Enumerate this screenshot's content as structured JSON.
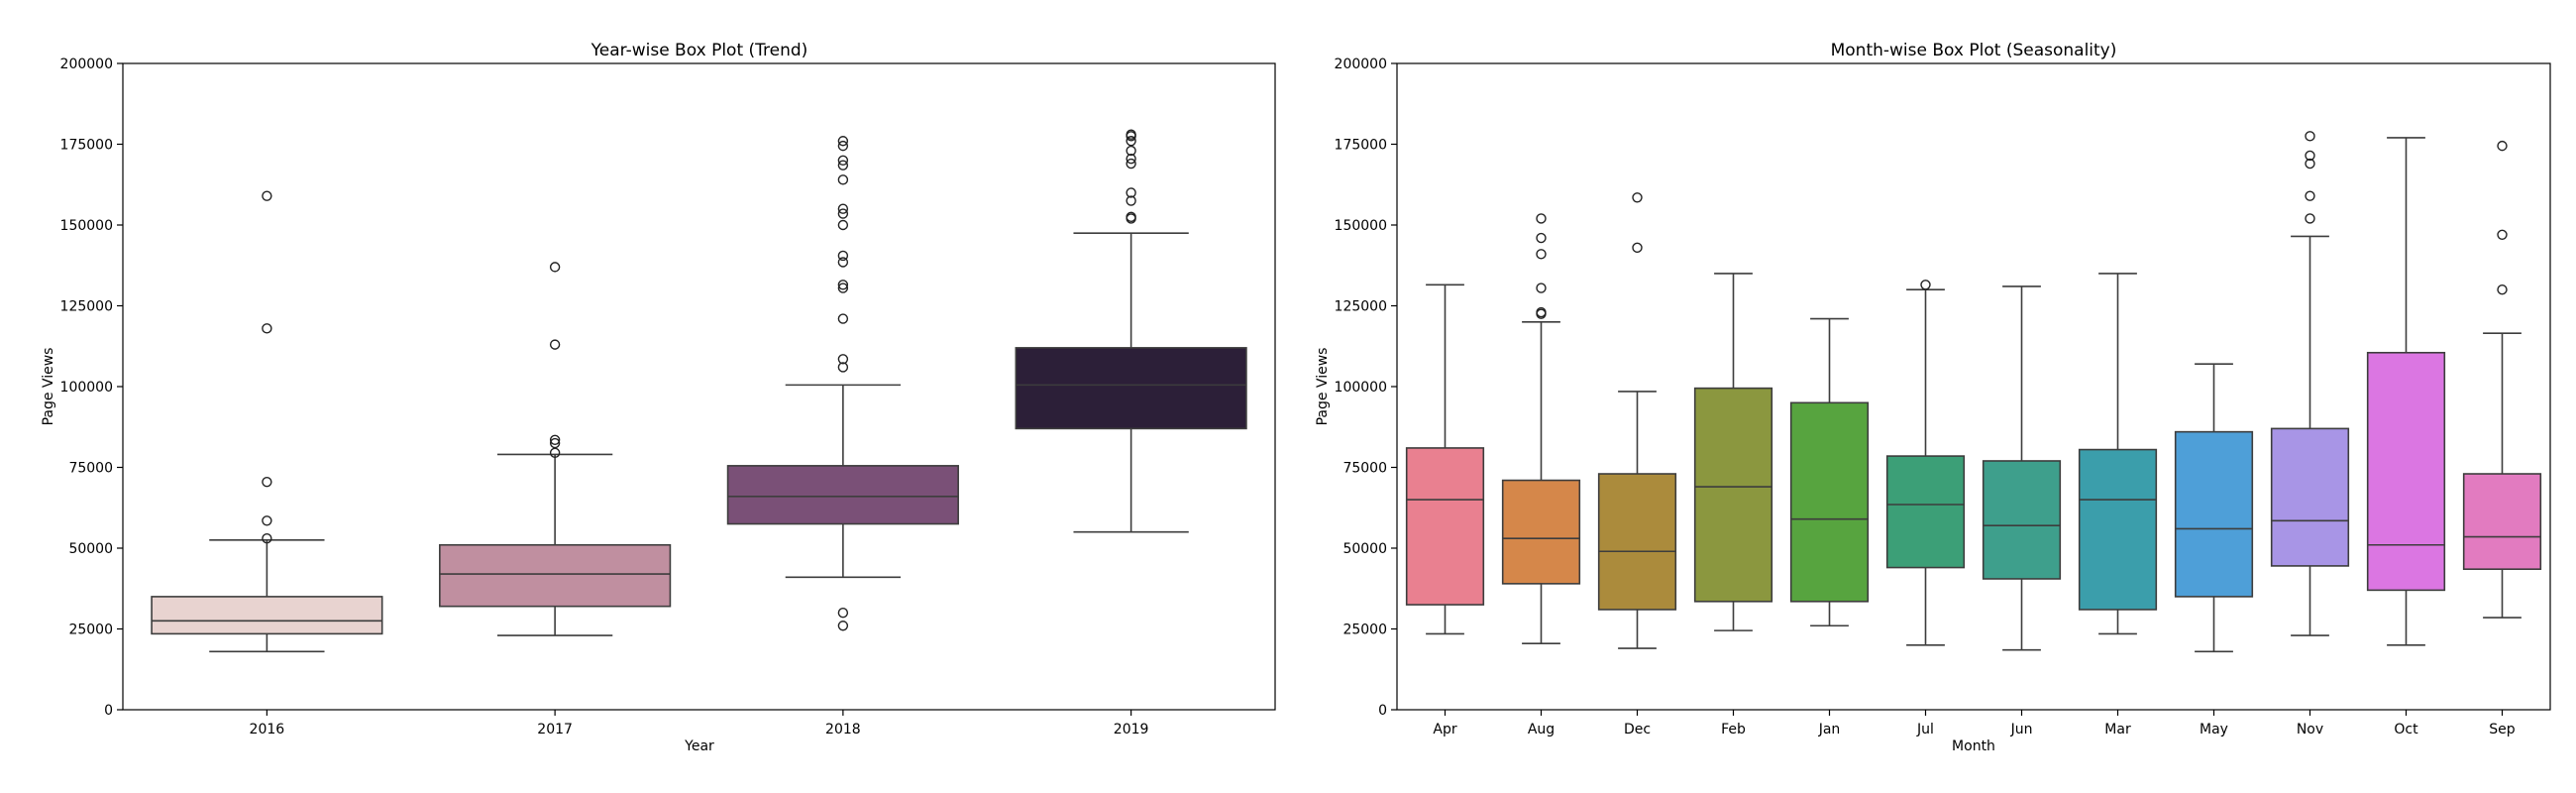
{
  "chart_data": [
    {
      "type": "box",
      "title": "Year-wise Box Plot (Trend)",
      "xlabel": "Year",
      "ylabel": "Page Views",
      "ylim": [
        0,
        200000
      ],
      "yticks": [
        "0",
        "25000",
        "50000",
        "75000",
        "100000",
        "125000",
        "150000",
        "175000",
        "200000"
      ],
      "yticks_values": [
        0,
        25000,
        50000,
        75000,
        100000,
        125000,
        150000,
        175000,
        200000
      ],
      "grid": false,
      "categories": [
        "2016",
        "2017",
        "2018",
        "2019"
      ],
      "colors": [
        "#e8d3d0",
        "#c08fa0",
        "#7a5077",
        "#2c1f38"
      ],
      "boxes": [
        {
          "category": "2016",
          "whislo": 18000,
          "q1": 23500,
          "med": 27500,
          "q3": 35000,
          "whishi": 52500,
          "fliers": [
            53000,
            58500,
            70500,
            118000,
            159000
          ]
        },
        {
          "category": "2017",
          "whislo": 23000,
          "q1": 32000,
          "med": 42000,
          "q3": 51000,
          "whishi": 79000,
          "fliers": [
            79500,
            82500,
            83500,
            113000,
            137000
          ]
        },
        {
          "category": "2018",
          "whislo": 41000,
          "q1": 57500,
          "med": 66000,
          "q3": 75500,
          "whishi": 100500,
          "fliers": [
            26000,
            30000,
            106000,
            108500,
            121000,
            130500,
            131500,
            138500,
            140500,
            150000,
            153500,
            155000,
            164000,
            168500,
            170000,
            174500,
            176000
          ]
        },
        {
          "category": "2019",
          "whislo": 55000,
          "q1": 87000,
          "med": 100500,
          "q3": 112000,
          "whishi": 147500,
          "fliers": [
            152000,
            152500,
            157500,
            160000,
            169000,
            170500,
            173000,
            176000,
            177500,
            178000
          ]
        }
      ]
    },
    {
      "type": "box",
      "title": "Month-wise Box Plot (Seasonality)",
      "xlabel": "Month",
      "ylabel": "Page Views",
      "ylim": [
        0,
        200000
      ],
      "yticks": [
        "0",
        "25000",
        "50000",
        "75000",
        "100000",
        "125000",
        "150000",
        "175000",
        "200000"
      ],
      "yticks_values": [
        0,
        25000,
        50000,
        75000,
        100000,
        125000,
        150000,
        175000,
        200000
      ],
      "grid": false,
      "categories": [
        "Apr",
        "Aug",
        "Dec",
        "Feb",
        "Jan",
        "Jul",
        "Jun",
        "Mar",
        "May",
        "Nov",
        "Oct",
        "Sep"
      ],
      "colors": [
        "#e98090",
        "#d5874a",
        "#ab8b3c",
        "#8b973f",
        "#57a43f",
        "#3c9f77",
        "#3e9f8c",
        "#3b9eab",
        "#4e9fd8",
        "#a895e6",
        "#db76e2",
        "#e27bc0"
      ],
      "boxes": [
        {
          "category": "Apr",
          "whislo": 23500,
          "q1": 32500,
          "med": 65000,
          "q3": 81000,
          "whishi": 131500,
          "fliers": []
        },
        {
          "category": "Aug",
          "whislo": 20500,
          "q1": 39000,
          "med": 53000,
          "q3": 71000,
          "whishi": 120000,
          "fliers": [
            122500,
            123000,
            130500,
            141000,
            146000,
            152000
          ]
        },
        {
          "category": "Dec",
          "whislo": 19000,
          "q1": 31000,
          "med": 49000,
          "q3": 73000,
          "whishi": 98500,
          "fliers": [
            143000,
            158500
          ]
        },
        {
          "category": "Feb",
          "whislo": 24500,
          "q1": 33500,
          "med": 69000,
          "q3": 99500,
          "whishi": 135000,
          "fliers": []
        },
        {
          "category": "Jan",
          "whislo": 26000,
          "q1": 33500,
          "med": 59000,
          "q3": 95000,
          "whishi": 121000,
          "fliers": []
        },
        {
          "category": "Jul",
          "whislo": 20000,
          "q1": 44000,
          "med": 63500,
          "q3": 78500,
          "whishi": 130000,
          "fliers": [
            131500
          ]
        },
        {
          "category": "Jun",
          "whislo": 18500,
          "q1": 40500,
          "med": 57000,
          "q3": 77000,
          "whishi": 131000,
          "fliers": []
        },
        {
          "category": "Mar",
          "whislo": 23500,
          "q1": 31000,
          "med": 65000,
          "q3": 80500,
          "whishi": 135000,
          "fliers": []
        },
        {
          "category": "May",
          "whislo": 18000,
          "q1": 35000,
          "med": 56000,
          "q3": 86000,
          "whishi": 107000,
          "fliers": []
        },
        {
          "category": "Nov",
          "whislo": 23000,
          "q1": 44500,
          "med": 58500,
          "q3": 87000,
          "whishi": 146500,
          "fliers": [
            152000,
            159000,
            169000,
            171500,
            177500
          ]
        },
        {
          "category": "Oct",
          "whislo": 20000,
          "q1": 37000,
          "med": 51000,
          "q3": 110500,
          "whishi": 177000,
          "fliers": []
        },
        {
          "category": "Sep",
          "whislo": 28500,
          "q1": 43500,
          "med": 53500,
          "q3": 73000,
          "whishi": 116500,
          "fliers": [
            130000,
            147000,
            174500
          ]
        }
      ]
    }
  ]
}
